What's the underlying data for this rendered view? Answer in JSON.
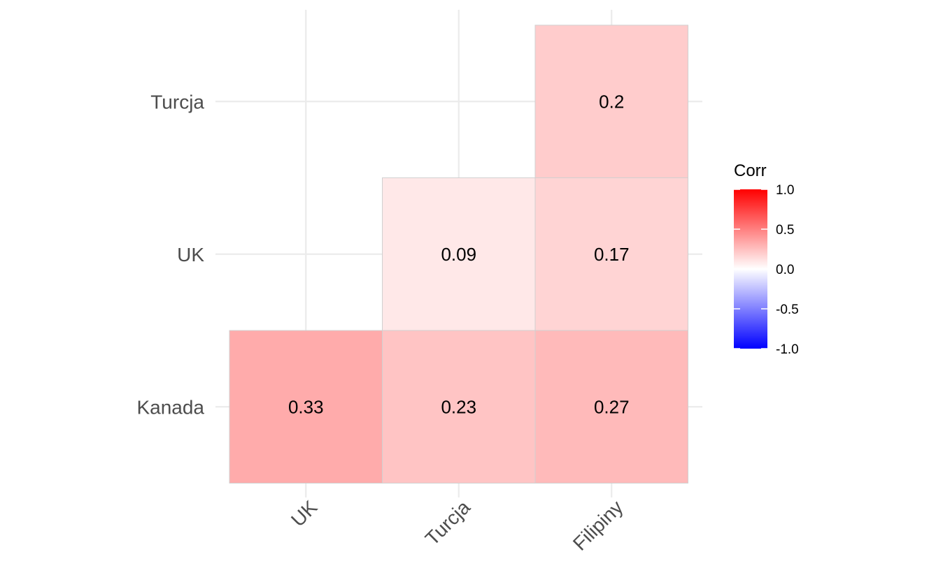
{
  "chart_data": {
    "type": "heatmap",
    "title": "",
    "xlabel": "",
    "ylabel": "",
    "x_categories": [
      "UK",
      "Turcja",
      "Filipiny"
    ],
    "y_categories": [
      "Kanada",
      "UK",
      "Turcja"
    ],
    "cells": [
      {
        "x": "UK",
        "y": "Kanada",
        "value": 0.33,
        "label": "0.33"
      },
      {
        "x": "Turcja",
        "y": "Kanada",
        "value": 0.23,
        "label": "0.23"
      },
      {
        "x": "Filipiny",
        "y": "Kanada",
        "value": 0.27,
        "label": "0.27"
      },
      {
        "x": "Turcja",
        "y": "UK",
        "value": 0.09,
        "label": "0.09"
      },
      {
        "x": "Filipiny",
        "y": "UK",
        "value": 0.17,
        "label": "0.17"
      },
      {
        "x": "Filipiny",
        "y": "Turcja",
        "value": 0.2,
        "label": "0.2"
      }
    ],
    "legend": {
      "title": "Corr",
      "placement": "right",
      "range": [
        -1,
        1
      ],
      "ticks": [
        {
          "value": 1,
          "label": "1.0"
        },
        {
          "value": 0.5,
          "label": "0.5"
        },
        {
          "value": 0,
          "label": "0.0"
        },
        {
          "value": -0.5,
          "label": "-0.5"
        },
        {
          "value": -1,
          "label": "-1.0"
        }
      ],
      "colors": {
        "low": "#0000ff",
        "mid": "#ffffff",
        "high": "#ff0000"
      }
    },
    "grid": true
  }
}
